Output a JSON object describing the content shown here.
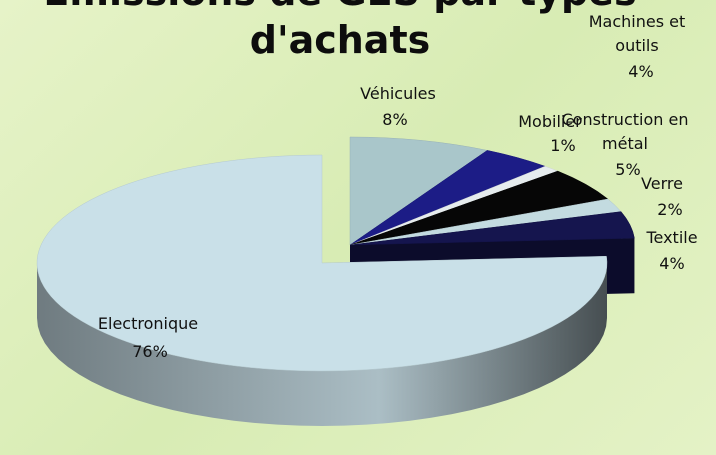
{
  "chart_data": {
    "type": "pie",
    "title": "Emissions de GES par types d'achats",
    "categories": [
      "Véhicules",
      "Machines et outils",
      "Mobilier",
      "Construction en métal",
      "Verre",
      "Textile",
      "Electronique"
    ],
    "values": [
      8,
      4,
      1,
      5,
      2,
      4,
      76
    ],
    "value_labels": [
      "8%",
      "4%",
      "1%",
      "5%",
      "2%",
      "4%",
      "76%"
    ],
    "colors": [
      "#a9c6ca",
      "#1c1c86",
      "#e6ecee",
      "#060606",
      "#c3dbe0",
      "#15154e",
      "#c9e0e8"
    ]
  }
}
